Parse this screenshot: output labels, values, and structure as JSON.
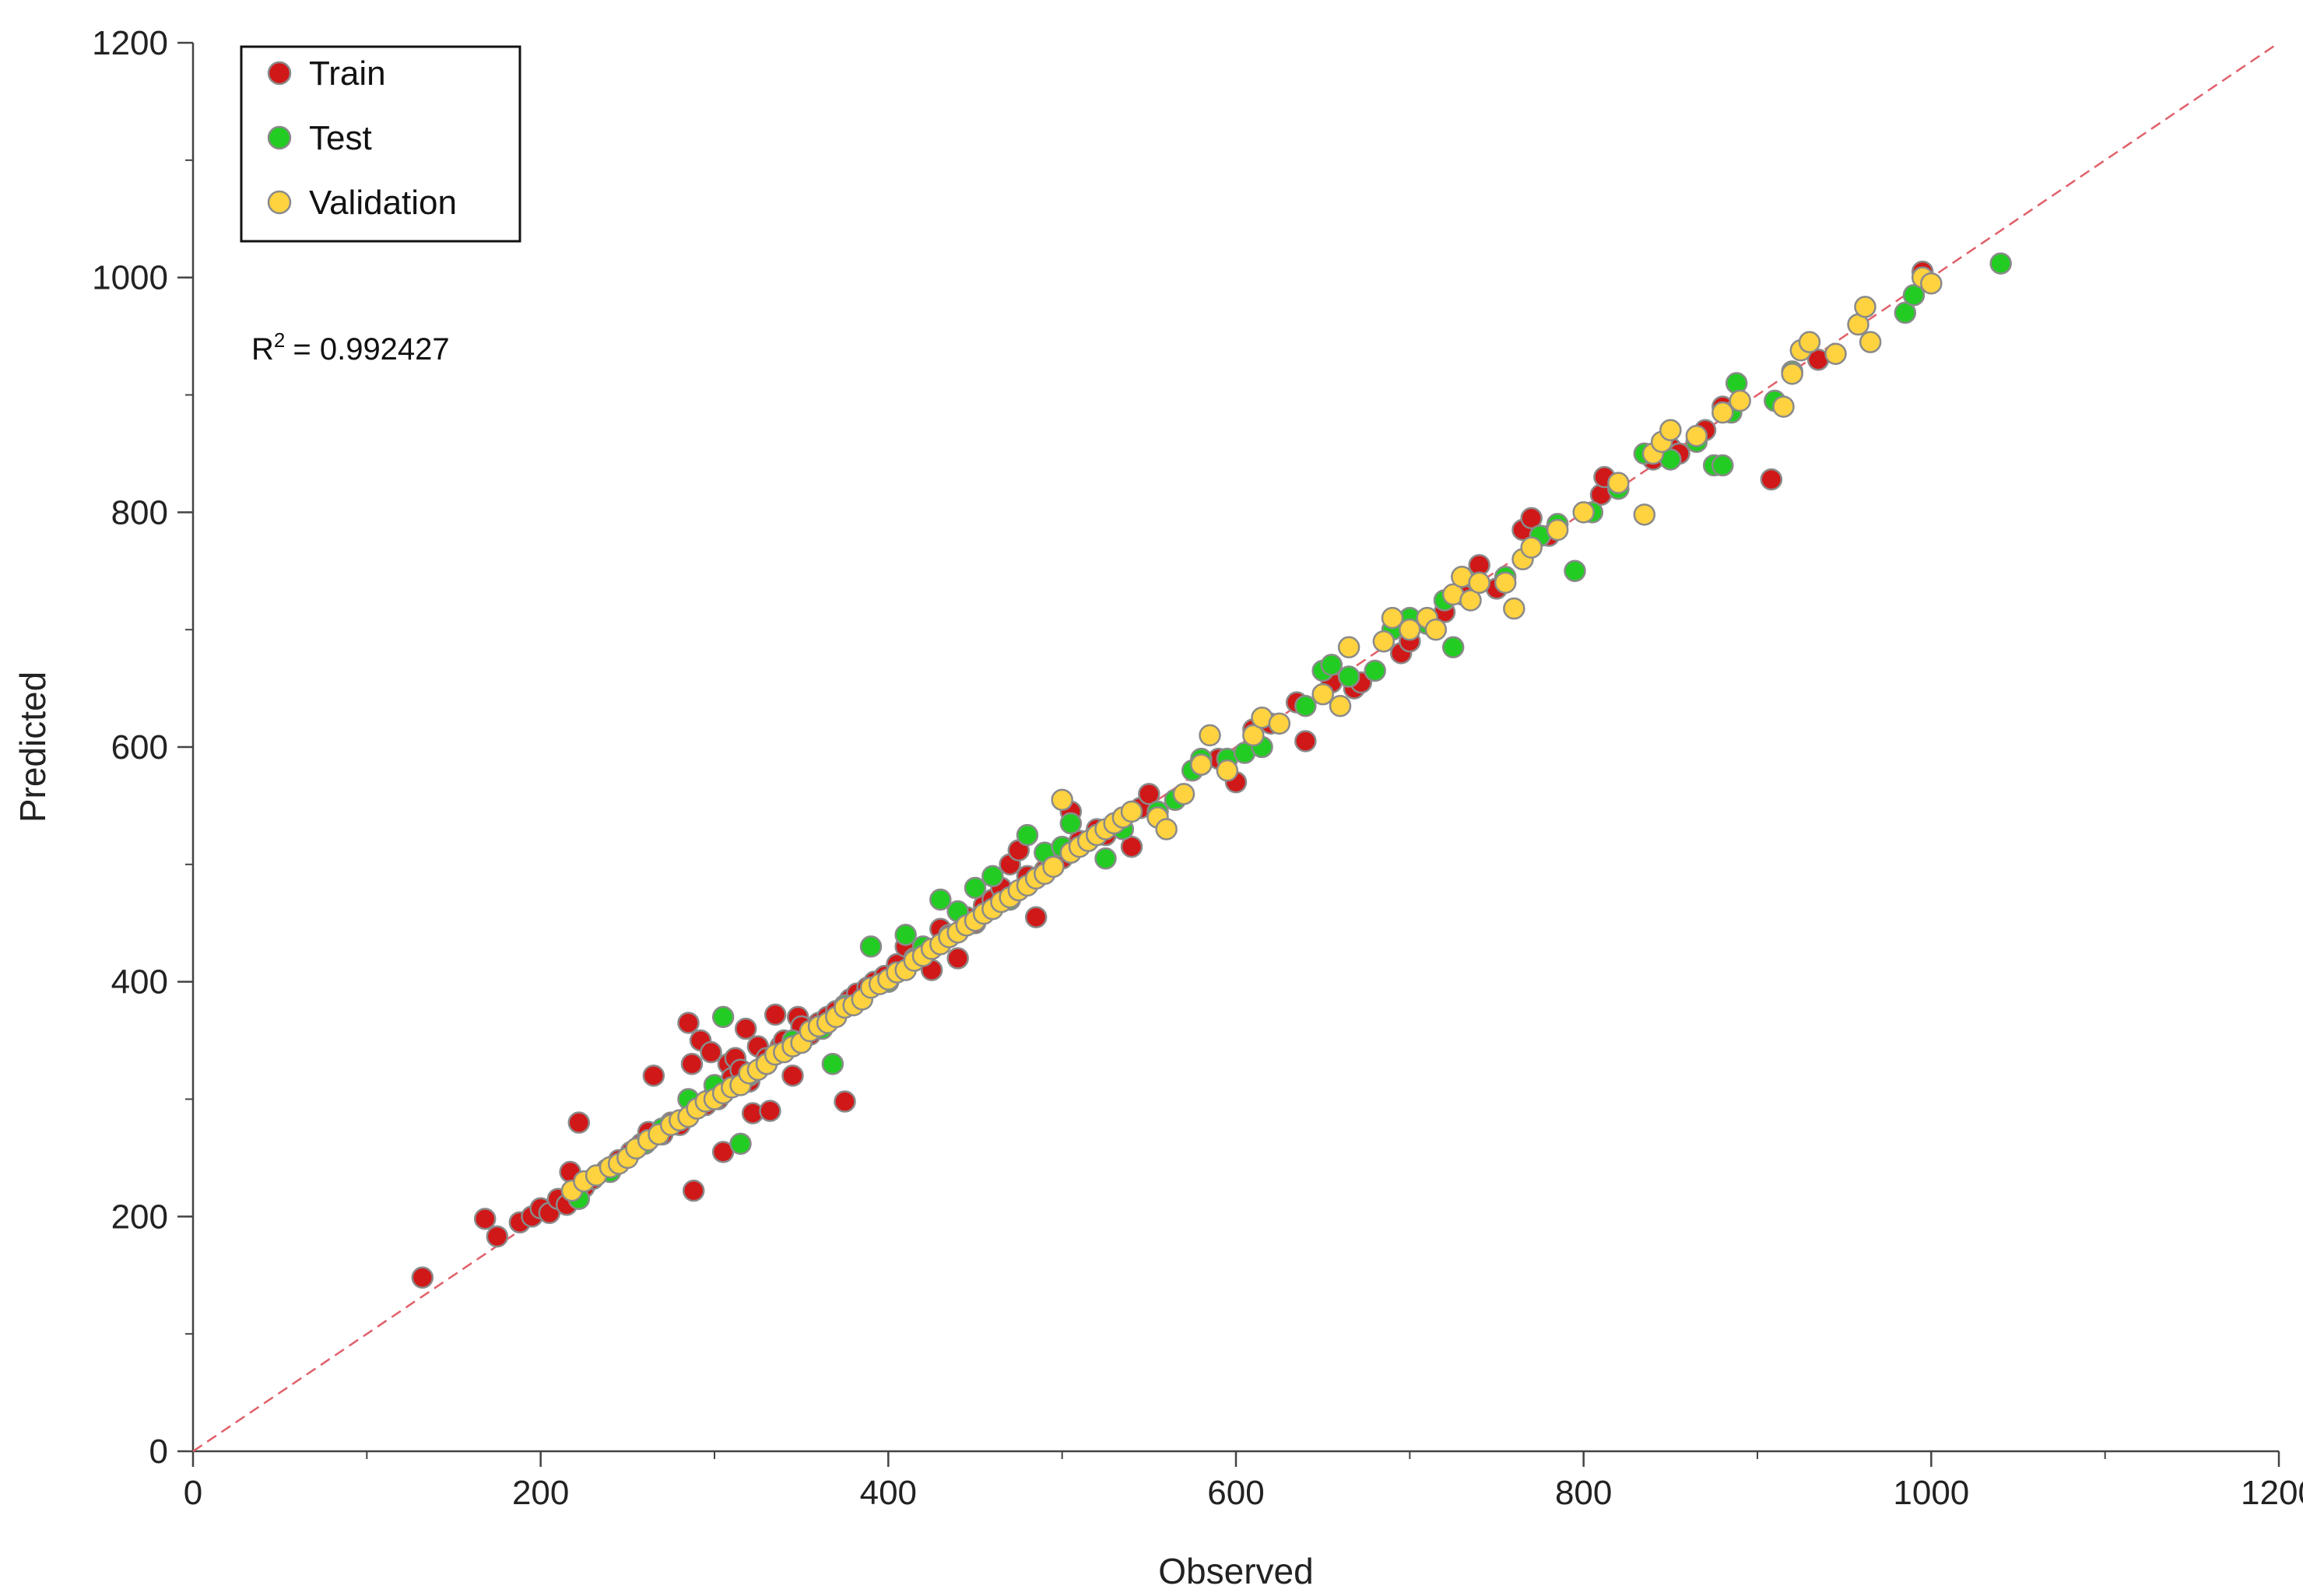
{
  "chart_data": {
    "type": "scatter",
    "xlabel": "Observed",
    "ylabel": "Predicted",
    "xlim": [
      0,
      1200
    ],
    "ylim": [
      0,
      1200
    ],
    "major_ticks": [
      0,
      200,
      400,
      600,
      800,
      1000,
      1200
    ],
    "minor_tick_step": 100,
    "grid": false,
    "legend_position": "top-left",
    "annotation": {
      "label": "R",
      "superscript": "2",
      "value": "= 0.992427"
    },
    "reference_line": {
      "from": [
        0,
        0
      ],
      "to": [
        1200,
        1200
      ],
      "color": "#e0606a",
      "style": "dashed"
    },
    "series": [
      {
        "name": "Train",
        "color": "#d01818",
        "points": [
          [
            132,
            148
          ],
          [
            168,
            198
          ],
          [
            175,
            183
          ],
          [
            188,
            195
          ],
          [
            195,
            200
          ],
          [
            200,
            207
          ],
          [
            205,
            203
          ],
          [
            210,
            215
          ],
          [
            215,
            210
          ],
          [
            217,
            238
          ],
          [
            222,
            280
          ],
          [
            225,
            225
          ],
          [
            230,
            232
          ],
          [
            238,
            240
          ],
          [
            245,
            248
          ],
          [
            252,
            255
          ],
          [
            258,
            262
          ],
          [
            262,
            272
          ],
          [
            265,
            320
          ],
          [
            270,
            270
          ],
          [
            275,
            280
          ],
          [
            280,
            278
          ],
          [
            285,
            365
          ],
          [
            287,
            330
          ],
          [
            288,
            222
          ],
          [
            292,
            350
          ],
          [
            295,
            295
          ],
          [
            298,
            340
          ],
          [
            300,
            305
          ],
          [
            302,
            300
          ],
          [
            305,
            255
          ],
          [
            308,
            330
          ],
          [
            310,
            318
          ],
          [
            312,
            335
          ],
          [
            315,
            325
          ],
          [
            318,
            360
          ],
          [
            320,
            315
          ],
          [
            322,
            288
          ],
          [
            325,
            345
          ],
          [
            330,
            335
          ],
          [
            332,
            290
          ],
          [
            335,
            372
          ],
          [
            338,
            345
          ],
          [
            340,
            350
          ],
          [
            345,
            320
          ],
          [
            348,
            370
          ],
          [
            350,
            362
          ],
          [
            355,
            355
          ],
          [
            360,
            365
          ],
          [
            365,
            370
          ],
          [
            370,
            375
          ],
          [
            375,
            298
          ],
          [
            378,
            385
          ],
          [
            382,
            390
          ],
          [
            388,
            395
          ],
          [
            392,
            400
          ],
          [
            398,
            405
          ],
          [
            405,
            415
          ],
          [
            410,
            430
          ],
          [
            415,
            420
          ],
          [
            420,
            425
          ],
          [
            425,
            410
          ],
          [
            430,
            445
          ],
          [
            435,
            440
          ],
          [
            440,
            420
          ],
          [
            445,
            455
          ],
          [
            450,
            450
          ],
          [
            455,
            465
          ],
          [
            460,
            470
          ],
          [
            465,
            480
          ],
          [
            470,
            500
          ],
          [
            475,
            512
          ],
          [
            480,
            490
          ],
          [
            485,
            455
          ],
          [
            490,
            495
          ],
          [
            500,
            505
          ],
          [
            505,
            545
          ],
          [
            510,
            520
          ],
          [
            520,
            530
          ],
          [
            525,
            525
          ],
          [
            535,
            540
          ],
          [
            540,
            515
          ],
          [
            545,
            548
          ],
          [
            550,
            560
          ],
          [
            580,
            585
          ],
          [
            590,
            590
          ],
          [
            600,
            570
          ],
          [
            610,
            615
          ],
          [
            620,
            620
          ],
          [
            635,
            638
          ],
          [
            640,
            605
          ],
          [
            655,
            655
          ],
          [
            668,
            650
          ],
          [
            672,
            655
          ],
          [
            695,
            680
          ],
          [
            700,
            690
          ],
          [
            720,
            715
          ],
          [
            730,
            730
          ],
          [
            740,
            755
          ],
          [
            750,
            735
          ],
          [
            765,
            785
          ],
          [
            770,
            795
          ],
          [
            780,
            780
          ],
          [
            810,
            815
          ],
          [
            812,
            830
          ],
          [
            840,
            845
          ],
          [
            850,
            855
          ],
          [
            855,
            850
          ],
          [
            870,
            870
          ],
          [
            880,
            890
          ],
          [
            908,
            828
          ],
          [
            935,
            930
          ],
          [
            995,
            1005
          ]
        ]
      },
      {
        "name": "Test",
        "color": "#22cc22",
        "points": [
          [
            222,
            215
          ],
          [
            240,
            238
          ],
          [
            260,
            262
          ],
          [
            270,
            275
          ],
          [
            285,
            300
          ],
          [
            300,
            312
          ],
          [
            305,
            370
          ],
          [
            315,
            262
          ],
          [
            320,
            320
          ],
          [
            330,
            330
          ],
          [
            345,
            350
          ],
          [
            362,
            360
          ],
          [
            368,
            330
          ],
          [
            375,
            380
          ],
          [
            390,
            430
          ],
          [
            400,
            400
          ],
          [
            410,
            440
          ],
          [
            420,
            430
          ],
          [
            430,
            470
          ],
          [
            440,
            460
          ],
          [
            450,
            480
          ],
          [
            460,
            490
          ],
          [
            470,
            470
          ],
          [
            480,
            525
          ],
          [
            490,
            510
          ],
          [
            500,
            515
          ],
          [
            505,
            535
          ],
          [
            515,
            520
          ],
          [
            525,
            505
          ],
          [
            535,
            530
          ],
          [
            555,
            545
          ],
          [
            565,
            555
          ],
          [
            575,
            580
          ],
          [
            580,
            590
          ],
          [
            595,
            590
          ],
          [
            605,
            595
          ],
          [
            615,
            600
          ],
          [
            640,
            635
          ],
          [
            650,
            665
          ],
          [
            655,
            670
          ],
          [
            665,
            660
          ],
          [
            680,
            665
          ],
          [
            690,
            700
          ],
          [
            700,
            710
          ],
          [
            710,
            705
          ],
          [
            720,
            725
          ],
          [
            725,
            685
          ],
          [
            740,
            740
          ],
          [
            755,
            745
          ],
          [
            775,
            780
          ],
          [
            785,
            790
          ],
          [
            795,
            750
          ],
          [
            805,
            800
          ],
          [
            820,
            820
          ],
          [
            835,
            850
          ],
          [
            850,
            845
          ],
          [
            865,
            860
          ],
          [
            875,
            840
          ],
          [
            880,
            840
          ],
          [
            885,
            885
          ],
          [
            888,
            910
          ],
          [
            910,
            895
          ],
          [
            920,
            920
          ],
          [
            985,
            970
          ],
          [
            990,
            985
          ],
          [
            1040,
            1012
          ]
        ]
      },
      {
        "name": "Validation",
        "color": "#ffd23f",
        "points": [
          [
            218,
            222
          ],
          [
            225,
            230
          ],
          [
            232,
            235
          ],
          [
            240,
            242
          ],
          [
            245,
            245
          ],
          [
            250,
            250
          ],
          [
            255,
            258
          ],
          [
            262,
            265
          ],
          [
            268,
            270
          ],
          [
            275,
            278
          ],
          [
            280,
            282
          ],
          [
            285,
            285
          ],
          [
            290,
            292
          ],
          [
            295,
            298
          ],
          [
            300,
            300
          ],
          [
            305,
            305
          ],
          [
            310,
            310
          ],
          [
            315,
            312
          ],
          [
            320,
            322
          ],
          [
            325,
            325
          ],
          [
            330,
            330
          ],
          [
            335,
            338
          ],
          [
            340,
            340
          ],
          [
            345,
            345
          ],
          [
            350,
            348
          ],
          [
            355,
            358
          ],
          [
            360,
            362
          ],
          [
            365,
            365
          ],
          [
            370,
            370
          ],
          [
            375,
            378
          ],
          [
            380,
            380
          ],
          [
            385,
            385
          ],
          [
            390,
            395
          ],
          [
            395,
            398
          ],
          [
            400,
            402
          ],
          [
            405,
            408
          ],
          [
            410,
            410
          ],
          [
            415,
            418
          ],
          [
            420,
            422
          ],
          [
            425,
            428
          ],
          [
            430,
            432
          ],
          [
            435,
            438
          ],
          [
            440,
            442
          ],
          [
            445,
            448
          ],
          [
            450,
            452
          ],
          [
            455,
            458
          ],
          [
            460,
            462
          ],
          [
            465,
            468
          ],
          [
            470,
            472
          ],
          [
            475,
            478
          ],
          [
            480,
            482
          ],
          [
            485,
            488
          ],
          [
            490,
            492
          ],
          [
            495,
            498
          ],
          [
            500,
            555
          ],
          [
            505,
            510
          ],
          [
            510,
            515
          ],
          [
            515,
            520
          ],
          [
            520,
            525
          ],
          [
            525,
            530
          ],
          [
            530,
            535
          ],
          [
            535,
            540
          ],
          [
            540,
            545
          ],
          [
            555,
            540
          ],
          [
            560,
            530
          ],
          [
            570,
            560
          ],
          [
            580,
            585
          ],
          [
            585,
            610
          ],
          [
            595,
            580
          ],
          [
            610,
            610
          ],
          [
            615,
            625
          ],
          [
            625,
            620
          ],
          [
            650,
            645
          ],
          [
            660,
            635
          ],
          [
            665,
            685
          ],
          [
            685,
            690
          ],
          [
            690,
            710
          ],
          [
            700,
            700
          ],
          [
            710,
            710
          ],
          [
            715,
            700
          ],
          [
            725,
            730
          ],
          [
            730,
            745
          ],
          [
            735,
            725
          ],
          [
            740,
            740
          ],
          [
            755,
            740
          ],
          [
            760,
            718
          ],
          [
            765,
            760
          ],
          [
            770,
            770
          ],
          [
            785,
            785
          ],
          [
            800,
            800
          ],
          [
            820,
            825
          ],
          [
            835,
            798
          ],
          [
            840,
            850
          ],
          [
            845,
            860
          ],
          [
            850,
            870
          ],
          [
            865,
            865
          ],
          [
            880,
            885
          ],
          [
            890,
            895
          ],
          [
            915,
            890
          ],
          [
            920,
            918
          ],
          [
            925,
            938
          ],
          [
            930,
            945
          ],
          [
            945,
            935
          ],
          [
            958,
            960
          ],
          [
            962,
            975
          ],
          [
            965,
            945
          ],
          [
            995,
            1000
          ],
          [
            1000,
            995
          ]
        ]
      }
    ]
  }
}
